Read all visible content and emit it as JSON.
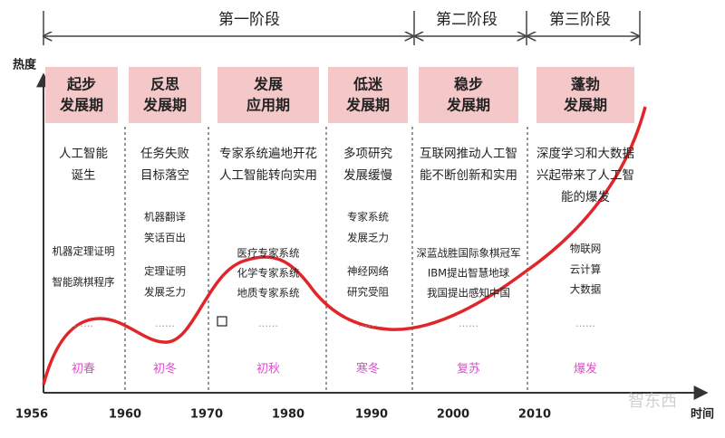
{
  "title_stages": [
    "第一阶段",
    "第二阶段",
    "第三阶段"
  ],
  "axis": {
    "y_label": "热度",
    "x_label": "时间",
    "years": [
      "1956",
      "1960",
      "1970",
      "1980",
      "1990",
      "2000",
      "2010"
    ]
  },
  "ellipsis": "……",
  "watermark": "智东西",
  "periods": [
    {
      "title": [
        "起步",
        "发展期"
      ],
      "events": [
        "人工智能",
        "诞生"
      ],
      "details": [
        "机器定理证明",
        "智能跳棋程序"
      ],
      "season": "初春"
    },
    {
      "title": [
        "反思",
        "发展期"
      ],
      "events": [
        "任务失败",
        "目标落空"
      ],
      "details": [
        "机器翻译",
        "笑话百出",
        "定理证明",
        "发展乏力"
      ],
      "season": "初冬"
    },
    {
      "title": [
        "发展",
        "应用期"
      ],
      "events": [
        "专家系统遍地开花",
        "人工智能转向实用"
      ],
      "details": [
        "医疗专家系统",
        "化学专家系统",
        "地质专家系统"
      ],
      "season": "初秋"
    },
    {
      "title": [
        "低迷",
        "发展期"
      ],
      "events": [
        "多项研究",
        "发展缓慢"
      ],
      "details": [
        "专家系统",
        "发展乏力",
        "神经网络",
        "研究受阻"
      ],
      "season": "寒冬"
    },
    {
      "title": [
        "稳步",
        "发展期"
      ],
      "events": [
        "互联网推动人工智",
        "能不断创新和实用"
      ],
      "details": [
        "深蓝战胜国际象棋冠军",
        "IBM提出智慧地球",
        "我国提出感知中国"
      ],
      "season": "复苏"
    },
    {
      "title": [
        "蓬勃",
        "发展期"
      ],
      "events": [
        "深度学习和大数据",
        "兴起带来了人工智",
        "能的爆发"
      ],
      "details": [
        "物联网",
        "云计算",
        "大数据"
      ],
      "season": "爆发"
    }
  ]
}
